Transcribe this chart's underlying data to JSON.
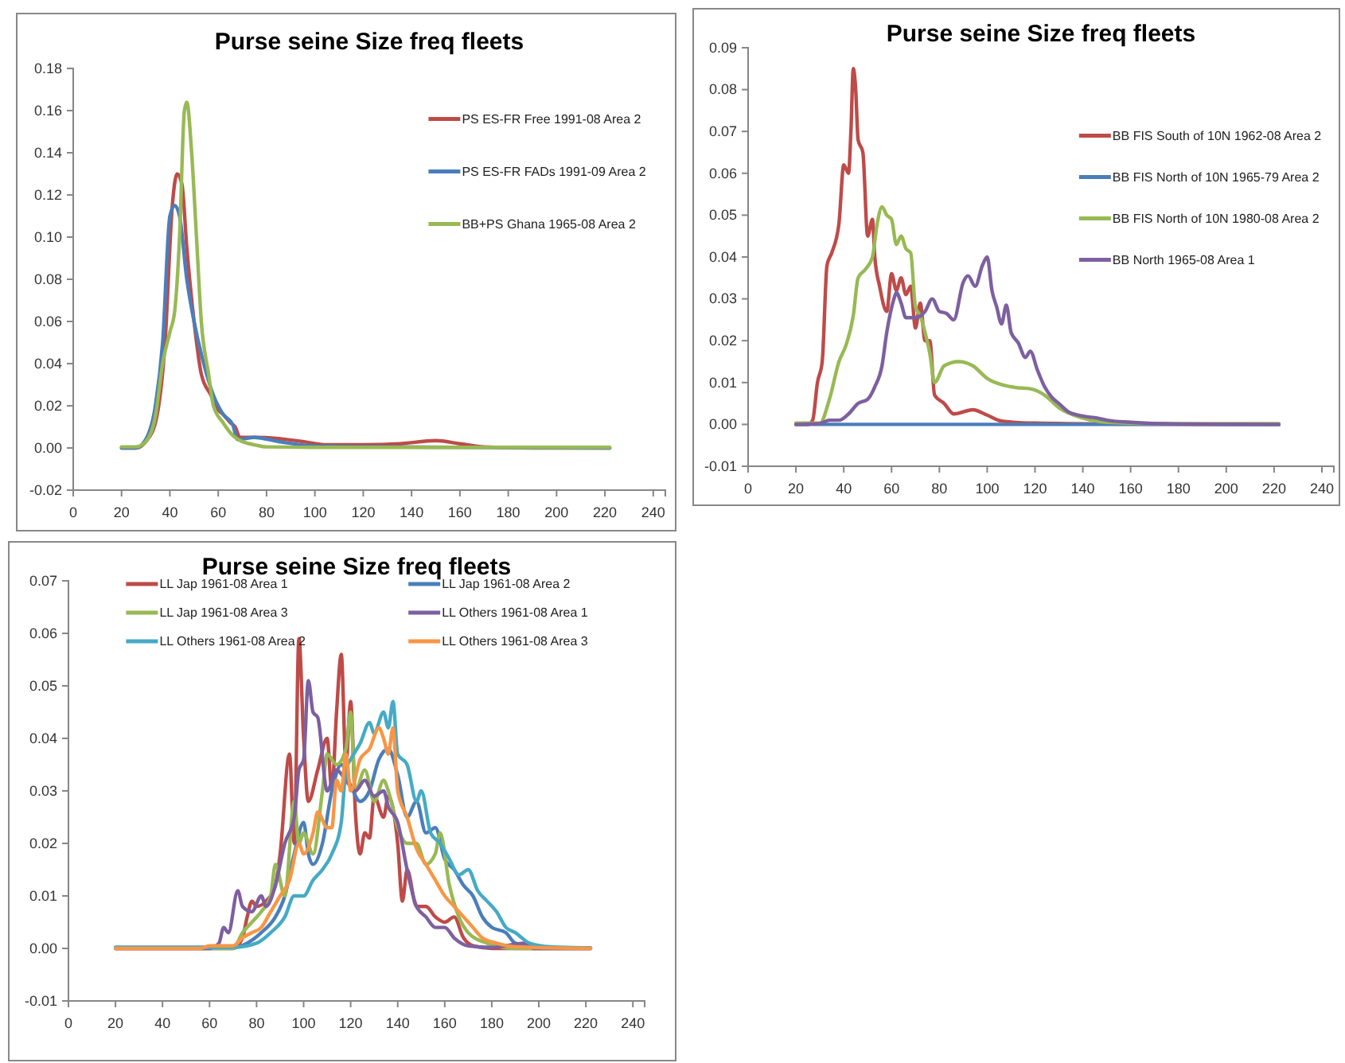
{
  "chart_data": [
    {
      "type": "line",
      "title": "Purse seine Size freq fleets",
      "xlim": [
        0,
        245
      ],
      "xticks": [
        0,
        20,
        40,
        60,
        80,
        100,
        120,
        140,
        160,
        180,
        200,
        220,
        240
      ],
      "ylim": [
        -0.02,
        0.18
      ],
      "yticks": [
        {
          "value": -0.02,
          "label": "-0.02"
        },
        {
          "value": 0,
          "label": "0.00"
        },
        {
          "value": 0.02,
          "label": "0.02"
        },
        {
          "value": 0.04,
          "label": "0.04"
        },
        {
          "value": 0.06,
          "label": "0.06"
        },
        {
          "value": 0.08,
          "label": "0.08"
        },
        {
          "value": 0.1,
          "label": "0.10"
        },
        {
          "value": 0.12,
          "label": "0.12"
        },
        {
          "value": 0.14,
          "label": "0.14"
        },
        {
          "value": 0.16,
          "label": "0.16"
        },
        {
          "value": 0.18,
          "label": "0.18"
        }
      ],
      "grid": false,
      "legend": "top right",
      "marker": "none",
      "series": [
        {
          "name": "PS ES-FR Free 1991-08 Area 2",
          "color": "#be4b48",
          "x": [
            20,
            26,
            30,
            34,
            38,
            41,
            43,
            45,
            47,
            50,
            53,
            57,
            60,
            62,
            65,
            67,
            69,
            75,
            85,
            95,
            105,
            120,
            135,
            150,
            160,
            170,
            190,
            222
          ],
          "values": [
            0,
            0,
            0.003,
            0.012,
            0.05,
            0.115,
            0.13,
            0.125,
            0.095,
            0.06,
            0.035,
            0.025,
            0.018,
            0.016,
            0.012,
            0.01,
            0.005,
            0.005,
            0.0045,
            0.003,
            0.0015,
            0.0015,
            0.002,
            0.0035,
            0.002,
            0.0005,
            0,
            0
          ]
        },
        {
          "name": "PS ES-FR FADs 1991-09 Area 2",
          "color": "#4a7ebb",
          "x": [
            20,
            26,
            30,
            34,
            37,
            40,
            42,
            44,
            47,
            50,
            54,
            58,
            62,
            66,
            68,
            75,
            85,
            100,
            130,
            222
          ],
          "values": [
            0,
            0,
            0.004,
            0.02,
            0.05,
            0.11,
            0.115,
            0.11,
            0.08,
            0.06,
            0.04,
            0.025,
            0.016,
            0.011,
            0.004,
            0.005,
            0.003,
            0.001,
            0.0005,
            0
          ]
        },
        {
          "name": "BB+PS Ghana 1965-08 Area 2",
          "color": "#98b954",
          "x": [
            20,
            26,
            30,
            34,
            37,
            40,
            42,
            44,
            46,
            47,
            49,
            51,
            53,
            56,
            58,
            62,
            66,
            70,
            75,
            80,
            100,
            222
          ],
          "values": [
            0.0005,
            0.0005,
            0.003,
            0.015,
            0.04,
            0.055,
            0.065,
            0.1,
            0.16,
            0.164,
            0.14,
            0.1,
            0.06,
            0.035,
            0.02,
            0.012,
            0.006,
            0.003,
            0.0015,
            0.0005,
            0.0003,
            0.0003
          ]
        }
      ]
    },
    {
      "type": "line",
      "title": "Purse seine Size freq fleets",
      "xlim": [
        0,
        245
      ],
      "xticks": [
        0,
        20,
        40,
        60,
        80,
        100,
        120,
        140,
        160,
        180,
        200,
        220,
        240
      ],
      "ylim": [
        -0.01,
        0.09
      ],
      "yticks": [
        {
          "value": -0.01,
          "label": "-0.01"
        },
        {
          "value": 0,
          "label": "0.00"
        },
        {
          "value": 0.01,
          "label": "0.01"
        },
        {
          "value": 0.02,
          "label": "0.02"
        },
        {
          "value": 0.03,
          "label": "0.03"
        },
        {
          "value": 0.04,
          "label": "0.04"
        },
        {
          "value": 0.05,
          "label": "0.05"
        },
        {
          "value": 0.06,
          "label": "0.06"
        },
        {
          "value": 0.07,
          "label": "0.07"
        },
        {
          "value": 0.08,
          "label": "0.08"
        },
        {
          "value": 0.09,
          "label": "0.09"
        }
      ],
      "grid": false,
      "legend": "right",
      "marker": "none",
      "series": [
        {
          "name": "BB FIS South of 10N 1962-08 Area 2",
          "color": "#be4b48",
          "x": [
            20,
            25,
            27,
            29,
            31,
            33,
            35,
            38,
            40,
            42,
            43,
            44,
            45,
            46,
            48,
            50,
            52,
            53,
            55,
            58,
            60,
            62,
            64,
            66,
            68,
            70,
            72,
            74,
            76,
            78,
            82,
            86,
            94,
            100,
            106,
            120,
            150,
            222
          ],
          "values": [
            0,
            0,
            0.001,
            0.01,
            0.015,
            0.038,
            0.041,
            0.048,
            0.062,
            0.06,
            0.07,
            0.085,
            0.08,
            0.068,
            0.065,
            0.045,
            0.049,
            0.04,
            0.033,
            0.027,
            0.036,
            0.032,
            0.035,
            0.031,
            0.033,
            0.023,
            0.029,
            0.02,
            0.02,
            0.007,
            0.005,
            0.0025,
            0.0035,
            0.0022,
            0.0008,
            0.0003,
            0.0001,
            0
          ]
        },
        {
          "name": "BB FIS North of 10N 1965-79 Area 2",
          "color": "#4a7ebb",
          "x": [
            20,
            30,
            222
          ],
          "values": [
            0,
            0,
            0
          ]
        },
        {
          "name": "BB FIS North of 10N 1980-08 Area 2",
          "color": "#98b954",
          "x": [
            20,
            30,
            34,
            38,
            41,
            44,
            46,
            49,
            52,
            54,
            56,
            58,
            60,
            62,
            64,
            66,
            68,
            70,
            72,
            74,
            76,
            78,
            82,
            88,
            94,
            100,
            106,
            112,
            118,
            124,
            130,
            140,
            150,
            170,
            222
          ],
          "values": [
            0.0003,
            0.0003,
            0.006,
            0.015,
            0.019,
            0.026,
            0.035,
            0.037,
            0.04,
            0.048,
            0.052,
            0.05,
            0.049,
            0.043,
            0.045,
            0.042,
            0.041,
            0.028,
            0.026,
            0.022,
            0.017,
            0.01,
            0.014,
            0.015,
            0.014,
            0.011,
            0.0095,
            0.0088,
            0.0085,
            0.007,
            0.004,
            0.0015,
            0.0005,
            0.0002,
            0.0002
          ]
        },
        {
          "name": "BB North 1965-08 Area 1",
          "color": "#7d60a0",
          "x": [
            20,
            30,
            34,
            38,
            42,
            46,
            50,
            53,
            56,
            58,
            61,
            62,
            64,
            66,
            70,
            74,
            77,
            80,
            83,
            86,
            90,
            92,
            95,
            98,
            100,
            102,
            104,
            106,
            108,
            110,
            113,
            116,
            118,
            121,
            124,
            127,
            130,
            134,
            140,
            146,
            150,
            160,
            180,
            222
          ],
          "values": [
            0,
            0.0002,
            0.001,
            0.001,
            0.0025,
            0.005,
            0.006,
            0.009,
            0.014,
            0.022,
            0.03,
            0.0315,
            0.029,
            0.0255,
            0.0255,
            0.027,
            0.03,
            0.027,
            0.0265,
            0.025,
            0.034,
            0.0355,
            0.033,
            0.038,
            0.04,
            0.032,
            0.028,
            0.024,
            0.0285,
            0.022,
            0.0195,
            0.016,
            0.0175,
            0.013,
            0.009,
            0.0065,
            0.005,
            0.003,
            0.002,
            0.0015,
            0.001,
            0.0005,
            0.0001,
            0
          ]
        }
      ]
    },
    {
      "type": "line",
      "title": "Purse seine Size freq fleets",
      "xlim": [
        0,
        245
      ],
      "xticks": [
        0,
        20,
        40,
        60,
        80,
        100,
        120,
        140,
        160,
        180,
        200,
        220,
        240
      ],
      "ylim": [
        -0.01,
        0.07
      ],
      "yticks": [
        {
          "value": -0.01,
          "label": "-0.01"
        },
        {
          "value": 0,
          "label": "0.00"
        },
        {
          "value": 0.01,
          "label": "0.01"
        },
        {
          "value": 0.02,
          "label": "0.02"
        },
        {
          "value": 0.03,
          "label": "0.03"
        },
        {
          "value": 0.04,
          "label": "0.04"
        },
        {
          "value": 0.05,
          "label": "0.05"
        },
        {
          "value": 0.06,
          "label": "0.06"
        },
        {
          "value": 0.07,
          "label": "0.07"
        }
      ],
      "grid": false,
      "legend": "top",
      "marker": "none",
      "series": [
        {
          "name": "LL Jap 1961-08 Area 1",
          "color": "#be4b48",
          "x": [
            20,
            70,
            74,
            76,
            78,
            80,
            84,
            88,
            90,
            94,
            96,
            98,
            100,
            102,
            106,
            110,
            112,
            114,
            116,
            118,
            120,
            122,
            124,
            126,
            128,
            130,
            134,
            136,
            140,
            142,
            144,
            148,
            152,
            156,
            160,
            164,
            168,
            172,
            180,
            222
          ],
          "values": [
            0,
            0,
            0.002,
            0.006,
            0.009,
            0.008,
            0.009,
            0.012,
            0.018,
            0.037,
            0.02,
            0.059,
            0.04,
            0.028,
            0.034,
            0.04,
            0.03,
            0.045,
            0.056,
            0.035,
            0.047,
            0.026,
            0.018,
            0.022,
            0.021,
            0.029,
            0.025,
            0.029,
            0.02,
            0.009,
            0.015,
            0.008,
            0.008,
            0.006,
            0.005,
            0.006,
            0.002,
            0.0005,
            0,
            0
          ]
        },
        {
          "name": "LL Jap 1961-08 Area 2",
          "color": "#4a7ebb",
          "x": [
            20,
            70,
            76,
            82,
            88,
            92,
            96,
            100,
            102,
            104,
            108,
            112,
            116,
            120,
            124,
            128,
            132,
            136,
            140,
            144,
            148,
            152,
            156,
            160,
            164,
            168,
            172,
            176,
            180,
            186,
            190,
            200,
            222
          ],
          "values": [
            0.0002,
            0.0002,
            0.001,
            0.003,
            0.006,
            0.01,
            0.018,
            0.024,
            0.018,
            0.016,
            0.02,
            0.03,
            0.035,
            0.031,
            0.028,
            0.03,
            0.036,
            0.038,
            0.033,
            0.025,
            0.028,
            0.022,
            0.023,
            0.017,
            0.015,
            0.012,
            0.01,
            0.006,
            0.004,
            0.003,
            0.001,
            0.0002,
            0.0001
          ]
        },
        {
          "name": "LL Jap 1961-08 Area 3",
          "color": "#98b954",
          "x": [
            20,
            70,
            74,
            78,
            82,
            86,
            88,
            92,
            96,
            98,
            100,
            104,
            108,
            110,
            114,
            118,
            120,
            122,
            126,
            130,
            134,
            136,
            140,
            144,
            148,
            152,
            156,
            158,
            162,
            166,
            170,
            178,
            190,
            222
          ],
          "values": [
            0,
            0,
            0.003,
            0.005,
            0.007,
            0.01,
            0.016,
            0.01,
            0.028,
            0.02,
            0.022,
            0.018,
            0.03,
            0.037,
            0.035,
            0.038,
            0.045,
            0.03,
            0.034,
            0.028,
            0.032,
            0.03,
            0.023,
            0.02,
            0.02,
            0.016,
            0.018,
            0.022,
            0.012,
            0.006,
            0.003,
            0.001,
            0,
            0
          ]
        },
        {
          "name": "LL Others 1961-08 Area 1",
          "color": "#7d60a0",
          "x": [
            20,
            60,
            64,
            66,
            68,
            72,
            74,
            78,
            82,
            84,
            88,
            92,
            96,
            98,
            100,
            102,
            104,
            106,
            110,
            114,
            118,
            122,
            126,
            130,
            134,
            136,
            140,
            144,
            148,
            152,
            156,
            160,
            164,
            170,
            180,
            194,
            198,
            222
          ],
          "values": [
            0,
            0,
            0.001,
            0.004,
            0.003,
            0.011,
            0.008,
            0.007,
            0.01,
            0.008,
            0.012,
            0.02,
            0.025,
            0.034,
            0.036,
            0.051,
            0.045,
            0.044,
            0.03,
            0.034,
            0.032,
            0.03,
            0.032,
            0.029,
            0.03,
            0.027,
            0.024,
            0.015,
            0.008,
            0.006,
            0.004,
            0.004,
            0.002,
            0.0005,
            0.0002,
            0.001,
            0,
            0
          ]
        },
        {
          "name": "LL Others 1961-08 Area 2",
          "color": "#46aac5",
          "x": [
            20,
            70,
            80,
            86,
            92,
            96,
            100,
            104,
            108,
            112,
            116,
            118,
            120,
            124,
            128,
            130,
            134,
            136,
            138,
            140,
            144,
            148,
            150,
            154,
            158,
            162,
            166,
            170,
            174,
            178,
            182,
            186,
            190,
            196,
            205,
            222
          ],
          "values": [
            0.0002,
            0.0002,
            0.001,
            0.003,
            0.006,
            0.01,
            0.01,
            0.013,
            0.015,
            0.018,
            0.024,
            0.034,
            0.036,
            0.039,
            0.043,
            0.041,
            0.045,
            0.042,
            0.047,
            0.037,
            0.035,
            0.028,
            0.03,
            0.022,
            0.02,
            0.017,
            0.014,
            0.015,
            0.011,
            0.009,
            0.007,
            0.004,
            0.003,
            0.001,
            0.0003,
            0.0001
          ]
        },
        {
          "name": "LL Others 1961-08 Area 3",
          "color": "#f79646",
          "x": [
            20,
            56,
            60,
            70,
            74,
            78,
            82,
            86,
            90,
            94,
            98,
            100,
            104,
            106,
            110,
            112,
            114,
            116,
            118,
            120,
            124,
            128,
            132,
            134,
            136,
            138,
            140,
            144,
            148,
            152,
            156,
            160,
            164,
            168,
            172,
            176,
            182,
            190,
            222
          ],
          "values": [
            0,
            0,
            0.0005,
            0.0005,
            0.002,
            0.003,
            0.004,
            0.007,
            0.01,
            0.013,
            0.02,
            0.018,
            0.022,
            0.026,
            0.023,
            0.023,
            0.032,
            0.03,
            0.037,
            0.03,
            0.036,
            0.038,
            0.042,
            0.04,
            0.037,
            0.042,
            0.03,
            0.025,
            0.019,
            0.016,
            0.013,
            0.01,
            0.008,
            0.006,
            0.004,
            0.002,
            0.001,
            0.0003,
            0
          ]
        }
      ]
    }
  ]
}
